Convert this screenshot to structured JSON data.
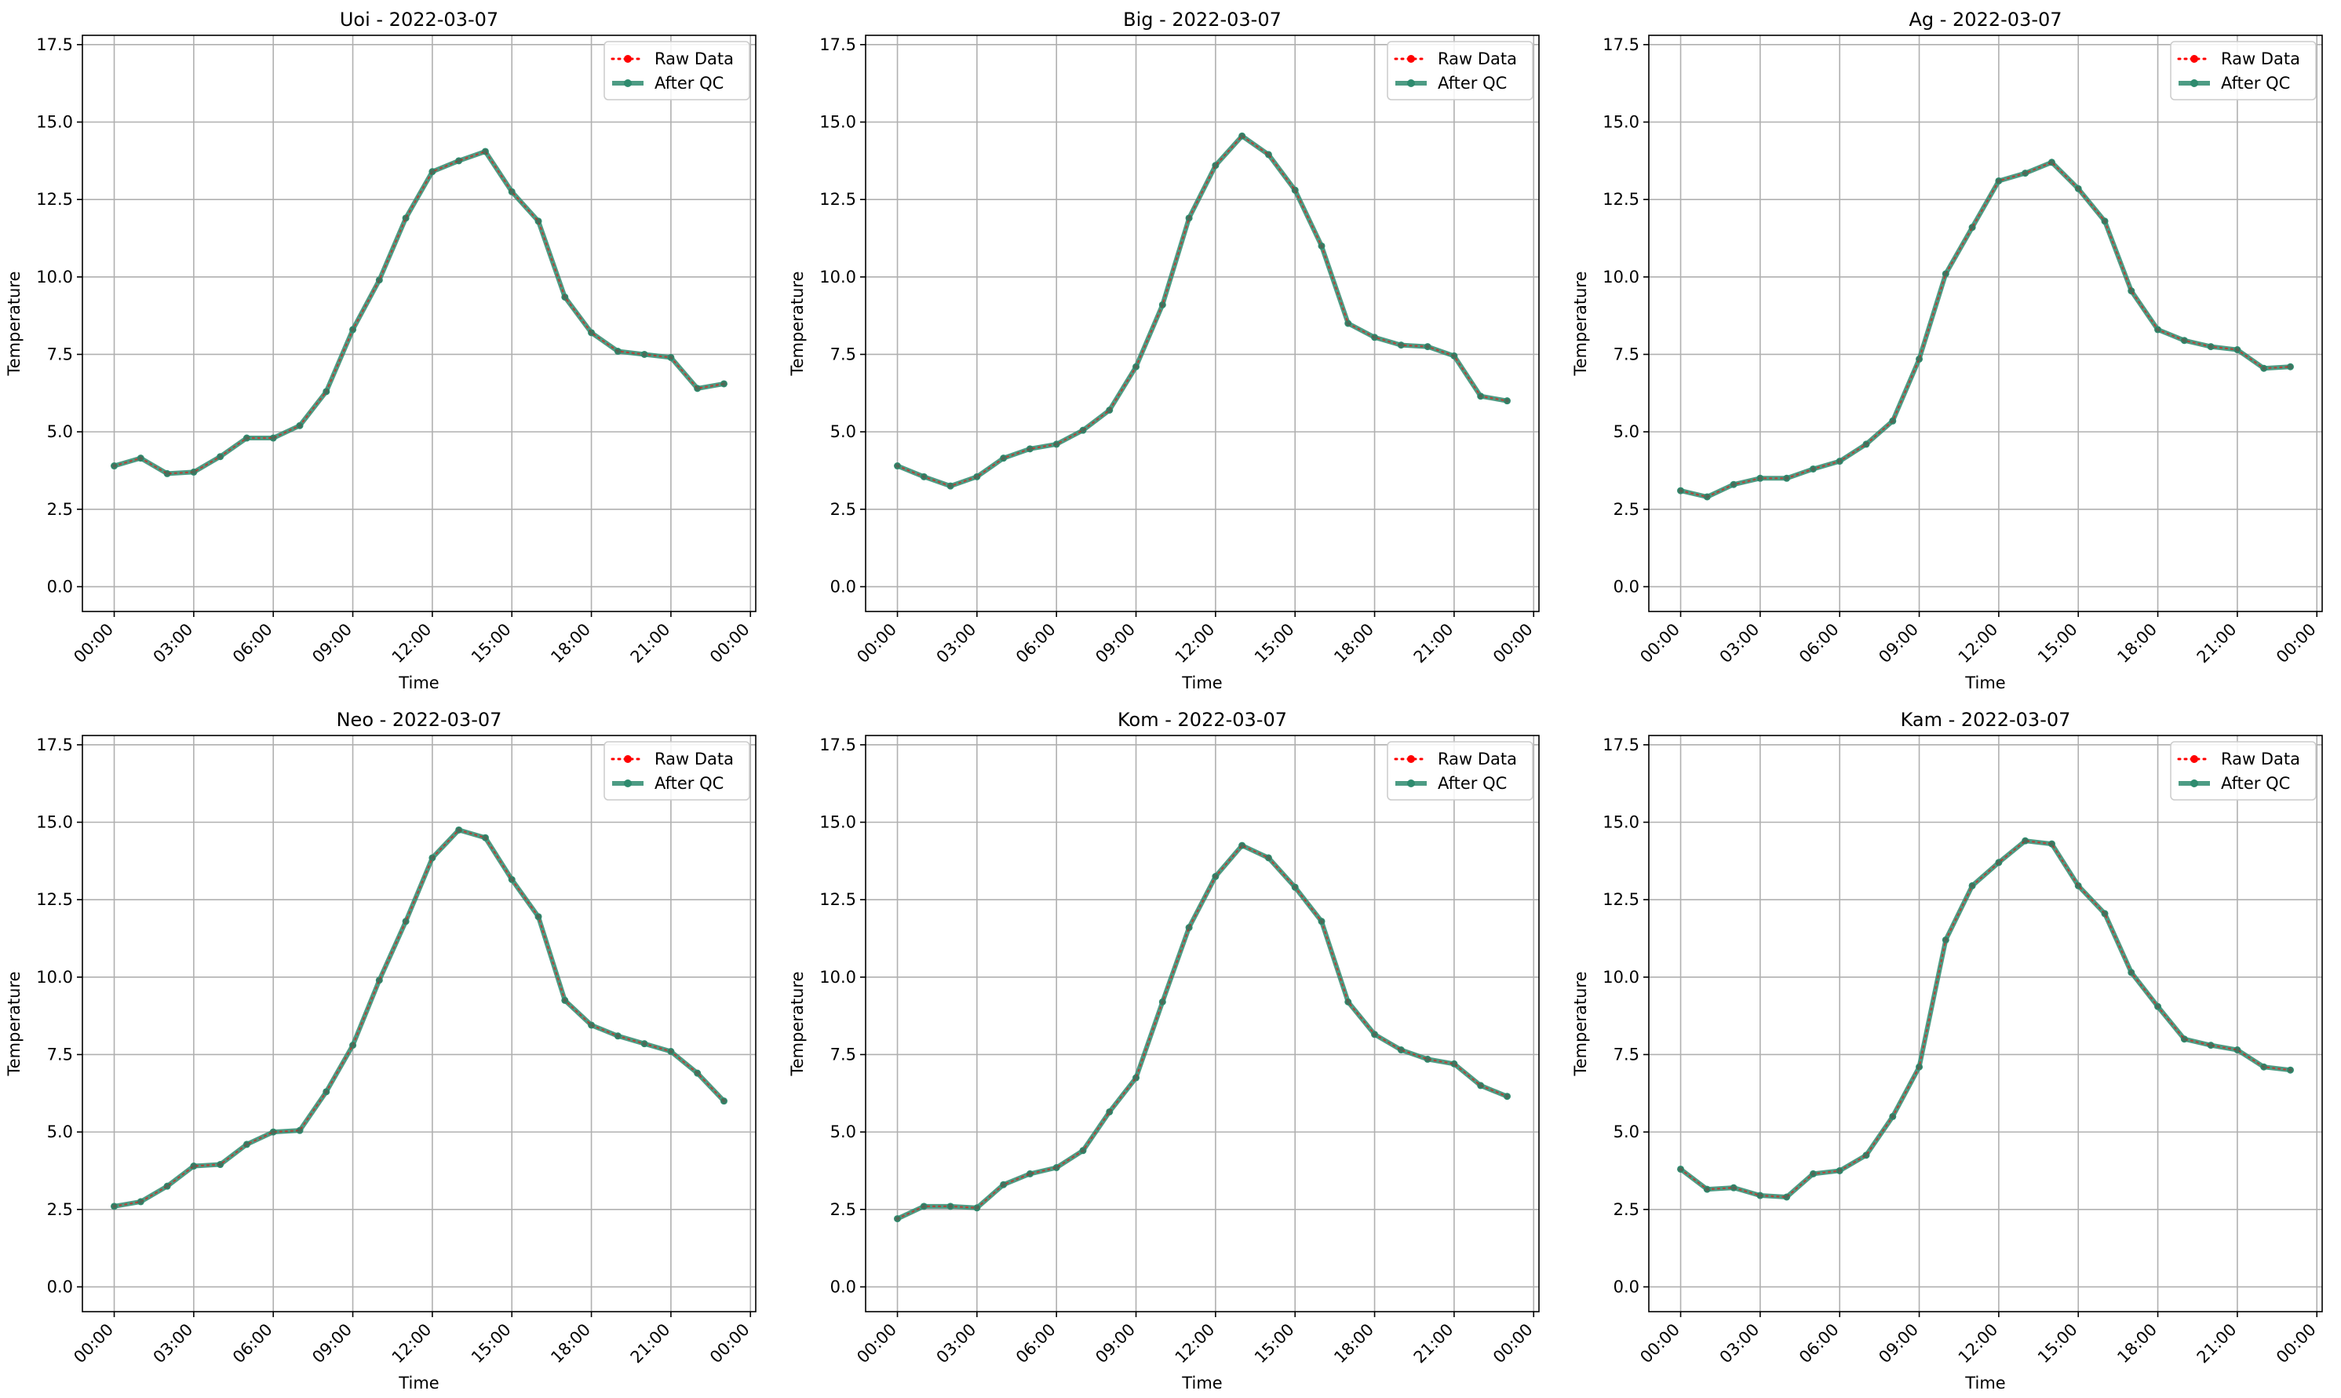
{
  "colors": {
    "raw": "#ff0000",
    "qc": "#2e8b6e",
    "grid": "#b0b0b0",
    "axis": "#000000"
  },
  "legend": {
    "raw_label": "Raw Data",
    "qc_label": "After QC",
    "placement": "upper right"
  },
  "chart_data": [
    {
      "type": "line",
      "title": "Uoi - 2022-03-07",
      "xlabel": "Time",
      "ylabel": "Temperature",
      "xticks": [
        "00:00",
        "03:00",
        "06:00",
        "09:00",
        "12:00",
        "15:00",
        "18:00",
        "21:00",
        "00:00"
      ],
      "yticks": [
        "0.0",
        "2.5",
        "5.0",
        "7.5",
        "10.0",
        "12.5",
        "15.0",
        "17.5"
      ],
      "ylim": [
        -0.8,
        17.8
      ],
      "grid": true,
      "legend": "top-right",
      "x": [
        "00:00",
        "01:00",
        "02:00",
        "03:00",
        "04:00",
        "05:00",
        "06:00",
        "07:00",
        "08:00",
        "09:00",
        "10:00",
        "11:00",
        "12:00",
        "13:00",
        "14:00",
        "15:00",
        "16:00",
        "17:00",
        "18:00",
        "19:00",
        "20:00",
        "21:00",
        "22:00",
        "23:00"
      ],
      "series": [
        {
          "name": "Raw Data",
          "values": [
            3.9,
            4.15,
            3.65,
            3.7,
            4.2,
            4.8,
            4.8,
            5.2,
            6.3,
            8.3,
            9.9,
            11.9,
            13.4,
            13.75,
            14.05,
            12.75,
            11.8,
            9.35,
            8.2,
            7.6,
            7.5,
            7.4,
            6.4,
            6.55
          ]
        },
        {
          "name": "After QC",
          "values": [
            3.9,
            4.15,
            3.65,
            3.7,
            4.2,
            4.8,
            4.8,
            5.2,
            6.3,
            8.3,
            9.9,
            11.9,
            13.4,
            13.75,
            14.05,
            12.75,
            11.8,
            9.35,
            8.2,
            7.6,
            7.5,
            7.4,
            6.4,
            6.55
          ]
        }
      ]
    },
    {
      "type": "line",
      "title": "Big - 2022-03-07",
      "xlabel": "Time",
      "ylabel": "Temperature",
      "xticks": [
        "00:00",
        "03:00",
        "06:00",
        "09:00",
        "12:00",
        "15:00",
        "18:00",
        "21:00",
        "00:00"
      ],
      "yticks": [
        "0.0",
        "2.5",
        "5.0",
        "7.5",
        "10.0",
        "12.5",
        "15.0",
        "17.5"
      ],
      "ylim": [
        -0.8,
        17.8
      ],
      "grid": true,
      "legend": "top-right",
      "x": [
        "00:00",
        "01:00",
        "02:00",
        "03:00",
        "04:00",
        "05:00",
        "06:00",
        "07:00",
        "08:00",
        "09:00",
        "10:00",
        "11:00",
        "12:00",
        "13:00",
        "14:00",
        "15:00",
        "16:00",
        "17:00",
        "18:00",
        "19:00",
        "20:00",
        "21:00",
        "22:00",
        "23:00"
      ],
      "series": [
        {
          "name": "Raw Data",
          "values": [
            3.9,
            3.55,
            3.25,
            3.55,
            4.15,
            4.45,
            4.6,
            5.05,
            5.7,
            7.1,
            9.1,
            11.9,
            13.6,
            14.55,
            13.95,
            12.8,
            11.0,
            8.5,
            8.05,
            7.8,
            7.75,
            7.45,
            6.15,
            6.0
          ]
        },
        {
          "name": "After QC",
          "values": [
            3.9,
            3.55,
            3.25,
            3.55,
            4.15,
            4.45,
            4.6,
            5.05,
            5.7,
            7.1,
            9.1,
            11.9,
            13.6,
            14.55,
            13.95,
            12.8,
            11.0,
            8.5,
            8.05,
            7.8,
            7.75,
            7.45,
            6.15,
            6.0
          ]
        }
      ]
    },
    {
      "type": "line",
      "title": "Ag - 2022-03-07",
      "xlabel": "Time",
      "ylabel": "Temperature",
      "xticks": [
        "00:00",
        "03:00",
        "06:00",
        "09:00",
        "12:00",
        "15:00",
        "18:00",
        "21:00",
        "00:00"
      ],
      "yticks": [
        "0.0",
        "2.5",
        "5.0",
        "7.5",
        "10.0",
        "12.5",
        "15.0",
        "17.5"
      ],
      "ylim": [
        -0.8,
        17.8
      ],
      "grid": true,
      "legend": "top-right",
      "x": [
        "00:00",
        "01:00",
        "02:00",
        "03:00",
        "04:00",
        "05:00",
        "06:00",
        "07:00",
        "08:00",
        "09:00",
        "10:00",
        "11:00",
        "12:00",
        "13:00",
        "14:00",
        "15:00",
        "16:00",
        "17:00",
        "18:00",
        "19:00",
        "20:00",
        "21:00",
        "22:00",
        "23:00"
      ],
      "series": [
        {
          "name": "Raw Data",
          "values": [
            3.1,
            2.9,
            3.3,
            3.5,
            3.5,
            3.8,
            4.05,
            4.6,
            5.35,
            7.35,
            10.1,
            11.6,
            13.1,
            13.35,
            13.7,
            12.85,
            11.8,
            9.55,
            8.3,
            7.95,
            7.75,
            7.65,
            7.05,
            7.1
          ]
        },
        {
          "name": "After QC",
          "values": [
            3.1,
            2.9,
            3.3,
            3.5,
            3.5,
            3.8,
            4.05,
            4.6,
            5.35,
            7.35,
            10.1,
            11.6,
            13.1,
            13.35,
            13.7,
            12.85,
            11.8,
            9.55,
            8.3,
            7.95,
            7.75,
            7.65,
            7.05,
            7.1
          ]
        }
      ]
    },
    {
      "type": "line",
      "title": "Neo - 2022-03-07",
      "xlabel": "Time",
      "ylabel": "Temperature",
      "xticks": [
        "00:00",
        "03:00",
        "06:00",
        "09:00",
        "12:00",
        "15:00",
        "18:00",
        "21:00",
        "00:00"
      ],
      "yticks": [
        "0.0",
        "2.5",
        "5.0",
        "7.5",
        "10.0",
        "12.5",
        "15.0",
        "17.5"
      ],
      "ylim": [
        -0.8,
        17.8
      ],
      "grid": true,
      "legend": "top-right",
      "x": [
        "00:00",
        "01:00",
        "02:00",
        "03:00",
        "04:00",
        "05:00",
        "06:00",
        "07:00",
        "08:00",
        "09:00",
        "10:00",
        "11:00",
        "12:00",
        "13:00",
        "14:00",
        "15:00",
        "16:00",
        "17:00",
        "18:00",
        "19:00",
        "20:00",
        "21:00",
        "22:00",
        "23:00"
      ],
      "series": [
        {
          "name": "Raw Data",
          "values": [
            2.6,
            2.75,
            3.25,
            3.9,
            3.95,
            4.6,
            5.0,
            5.05,
            6.3,
            7.8,
            9.9,
            11.8,
            13.85,
            14.75,
            14.5,
            13.15,
            11.95,
            9.25,
            8.45,
            8.1,
            7.85,
            7.6,
            6.9,
            6.0
          ]
        },
        {
          "name": "After QC",
          "values": [
            2.6,
            2.75,
            3.25,
            3.9,
            3.95,
            4.6,
            5.0,
            5.05,
            6.3,
            7.8,
            9.9,
            11.8,
            13.85,
            14.75,
            14.5,
            13.15,
            11.95,
            9.25,
            8.45,
            8.1,
            7.85,
            7.6,
            6.9,
            6.0
          ]
        }
      ]
    },
    {
      "type": "line",
      "title": "Kom - 2022-03-07",
      "xlabel": "Time",
      "ylabel": "Temperature",
      "xticks": [
        "00:00",
        "03:00",
        "06:00",
        "09:00",
        "12:00",
        "15:00",
        "18:00",
        "21:00",
        "00:00"
      ],
      "yticks": [
        "0.0",
        "2.5",
        "5.0",
        "7.5",
        "10.0",
        "12.5",
        "15.0",
        "17.5"
      ],
      "ylim": [
        -0.8,
        17.8
      ],
      "grid": true,
      "legend": "top-right",
      "x": [
        "00:00",
        "01:00",
        "02:00",
        "03:00",
        "04:00",
        "05:00",
        "06:00",
        "07:00",
        "08:00",
        "09:00",
        "10:00",
        "11:00",
        "12:00",
        "13:00",
        "14:00",
        "15:00",
        "16:00",
        "17:00",
        "18:00",
        "19:00",
        "20:00",
        "21:00",
        "22:00",
        "23:00"
      ],
      "series": [
        {
          "name": "Raw Data",
          "values": [
            2.2,
            2.6,
            2.6,
            2.55,
            3.3,
            3.65,
            3.85,
            4.4,
            5.65,
            6.75,
            9.2,
            11.6,
            13.25,
            14.25,
            13.85,
            12.9,
            11.8,
            9.2,
            8.15,
            7.65,
            7.35,
            7.2,
            6.5,
            6.15
          ]
        },
        {
          "name": "After QC",
          "values": [
            2.2,
            2.6,
            2.6,
            2.55,
            3.3,
            3.65,
            3.85,
            4.4,
            5.65,
            6.75,
            9.2,
            11.6,
            13.25,
            14.25,
            13.85,
            12.9,
            11.8,
            9.2,
            8.15,
            7.65,
            7.35,
            7.2,
            6.5,
            6.15
          ]
        }
      ]
    },
    {
      "type": "line",
      "title": "Kam - 2022-03-07",
      "xlabel": "Time",
      "ylabel": "Temperature",
      "xticks": [
        "00:00",
        "03:00",
        "06:00",
        "09:00",
        "12:00",
        "15:00",
        "18:00",
        "21:00",
        "00:00"
      ],
      "yticks": [
        "0.0",
        "2.5",
        "5.0",
        "7.5",
        "10.0",
        "12.5",
        "15.0",
        "17.5"
      ],
      "ylim": [
        -0.8,
        17.8
      ],
      "grid": true,
      "legend": "top-right",
      "x": [
        "00:00",
        "01:00",
        "02:00",
        "03:00",
        "04:00",
        "05:00",
        "06:00",
        "07:00",
        "08:00",
        "09:00",
        "10:00",
        "11:00",
        "12:00",
        "13:00",
        "14:00",
        "15:00",
        "16:00",
        "17:00",
        "18:00",
        "19:00",
        "20:00",
        "21:00",
        "22:00",
        "23:00"
      ],
      "series": [
        {
          "name": "Raw Data",
          "values": [
            3.8,
            3.15,
            3.2,
            2.95,
            2.9,
            3.65,
            3.75,
            4.25,
            5.5,
            7.1,
            11.2,
            12.95,
            13.7,
            14.4,
            14.3,
            12.95,
            12.05,
            10.15,
            9.05,
            8.0,
            7.8,
            7.65,
            7.1,
            7.0
          ]
        },
        {
          "name": "After QC",
          "values": [
            3.8,
            3.15,
            3.2,
            2.95,
            2.9,
            3.65,
            3.75,
            4.25,
            5.5,
            7.1,
            11.2,
            12.95,
            13.7,
            14.4,
            14.3,
            12.95,
            12.05,
            10.15,
            9.05,
            8.0,
            7.8,
            7.65,
            7.1,
            7.0
          ]
        }
      ]
    }
  ]
}
